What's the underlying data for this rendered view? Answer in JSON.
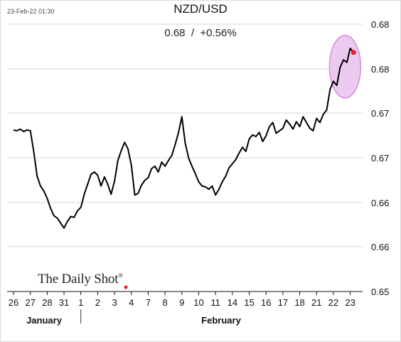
{
  "timestamp": "23-Feb-22 01:30",
  "chart_data": {
    "type": "line",
    "title": "NZD/USD",
    "subtitle": "0.68  /  +0.56%",
    "xlabel": "",
    "ylabel": "",
    "x_tick_labels": [
      "26",
      "27",
      "28",
      "31",
      "1",
      "2",
      "3",
      "4",
      "7",
      "8",
      "9",
      "10",
      "11",
      "14",
      "15",
      "16",
      "17",
      "18",
      "21",
      "22",
      "23"
    ],
    "month_labels": [
      "January",
      "February"
    ],
    "y_tick_labels": [
      "0.65",
      "0.66",
      "0.66",
      "0.67",
      "0.67",
      "0.68",
      "0.68"
    ],
    "ylim": [
      0.65,
      0.6845
    ],
    "grid": true,
    "series": [
      {
        "color": "#000000",
        "x": [
          0,
          0.2,
          0.4,
          0.6,
          0.8,
          1,
          1.2,
          1.4,
          1.6,
          1.8,
          2,
          2.2,
          2.4,
          2.6,
          2.8,
          3,
          3.2,
          3.4,
          3.6,
          3.8,
          4,
          4.2,
          4.4,
          4.6,
          4.8,
          5,
          5.2,
          5.4,
          5.6,
          5.8,
          6,
          6.2,
          6.4,
          6.6,
          6.8,
          7,
          7.2,
          7.4,
          7.6,
          7.8,
          8,
          8.2,
          8.4,
          8.6,
          8.8,
          9,
          9.2,
          9.4,
          9.6,
          9.8,
          10,
          10.2,
          10.4,
          10.6,
          10.8,
          11,
          11.2,
          11.4,
          11.6,
          11.8,
          12,
          12.2,
          12.4,
          12.6,
          12.8,
          13,
          13.2,
          13.4,
          13.6,
          13.8,
          14,
          14.2,
          14.4,
          14.6,
          14.8,
          15,
          15.2,
          15.4,
          15.6,
          15.8,
          16,
          16.2,
          16.4,
          16.6,
          16.8,
          17,
          17.2,
          17.4,
          17.6,
          17.8,
          18,
          18.2,
          18.4,
          18.6,
          18.8,
          19,
          19.2,
          19.4,
          19.6,
          19.8,
          20,
          20.2
        ],
        "y": [
          0.6696,
          0.6695,
          0.6697,
          0.6694,
          0.6696,
          0.6695,
          0.667,
          0.664,
          0.6628,
          0.6622,
          0.6613,
          0.6601,
          0.6592,
          0.6589,
          0.6583,
          0.6577,
          0.6585,
          0.6591,
          0.659,
          0.6598,
          0.6602,
          0.6618,
          0.663,
          0.6642,
          0.6645,
          0.6641,
          0.6628,
          0.6639,
          0.663,
          0.6618,
          0.6634,
          0.6659,
          0.6671,
          0.6681,
          0.6673,
          0.6653,
          0.6617,
          0.6619,
          0.6629,
          0.6635,
          0.6638,
          0.6649,
          0.6652,
          0.6645,
          0.6657,
          0.6652,
          0.6659,
          0.6665,
          0.6678,
          0.6693,
          0.6712,
          0.668,
          0.6662,
          0.6652,
          0.6643,
          0.6633,
          0.6628,
          0.6627,
          0.6624,
          0.6628,
          0.6617,
          0.6624,
          0.6633,
          0.664,
          0.665,
          0.6655,
          0.666,
          0.6668,
          0.6675,
          0.667,
          0.6685,
          0.669,
          0.6688,
          0.6693,
          0.6682,
          0.6689,
          0.67,
          0.6705,
          0.6692,
          0.6695,
          0.6698,
          0.6708,
          0.6703,
          0.6697,
          0.6706,
          0.67,
          0.6712,
          0.6705,
          0.6698,
          0.6695,
          0.671,
          0.6705,
          0.6715,
          0.672,
          0.6745,
          0.6755,
          0.675,
          0.6772,
          0.6781,
          0.6778,
          0.6795,
          0.679
        ]
      }
    ],
    "last_point": {
      "x": 20.2,
      "y": 0.679
    },
    "highlight": "ellipse around last value"
  },
  "colors": {
    "line": "#000000",
    "highlight_fill": "#ecc9ef",
    "highlight_stroke": "#d27bd8",
    "last_dot": "#e8202a",
    "grid": "#d9d9d9"
  },
  "branding": {
    "text": "The Daily Shot",
    "mark": "®"
  }
}
